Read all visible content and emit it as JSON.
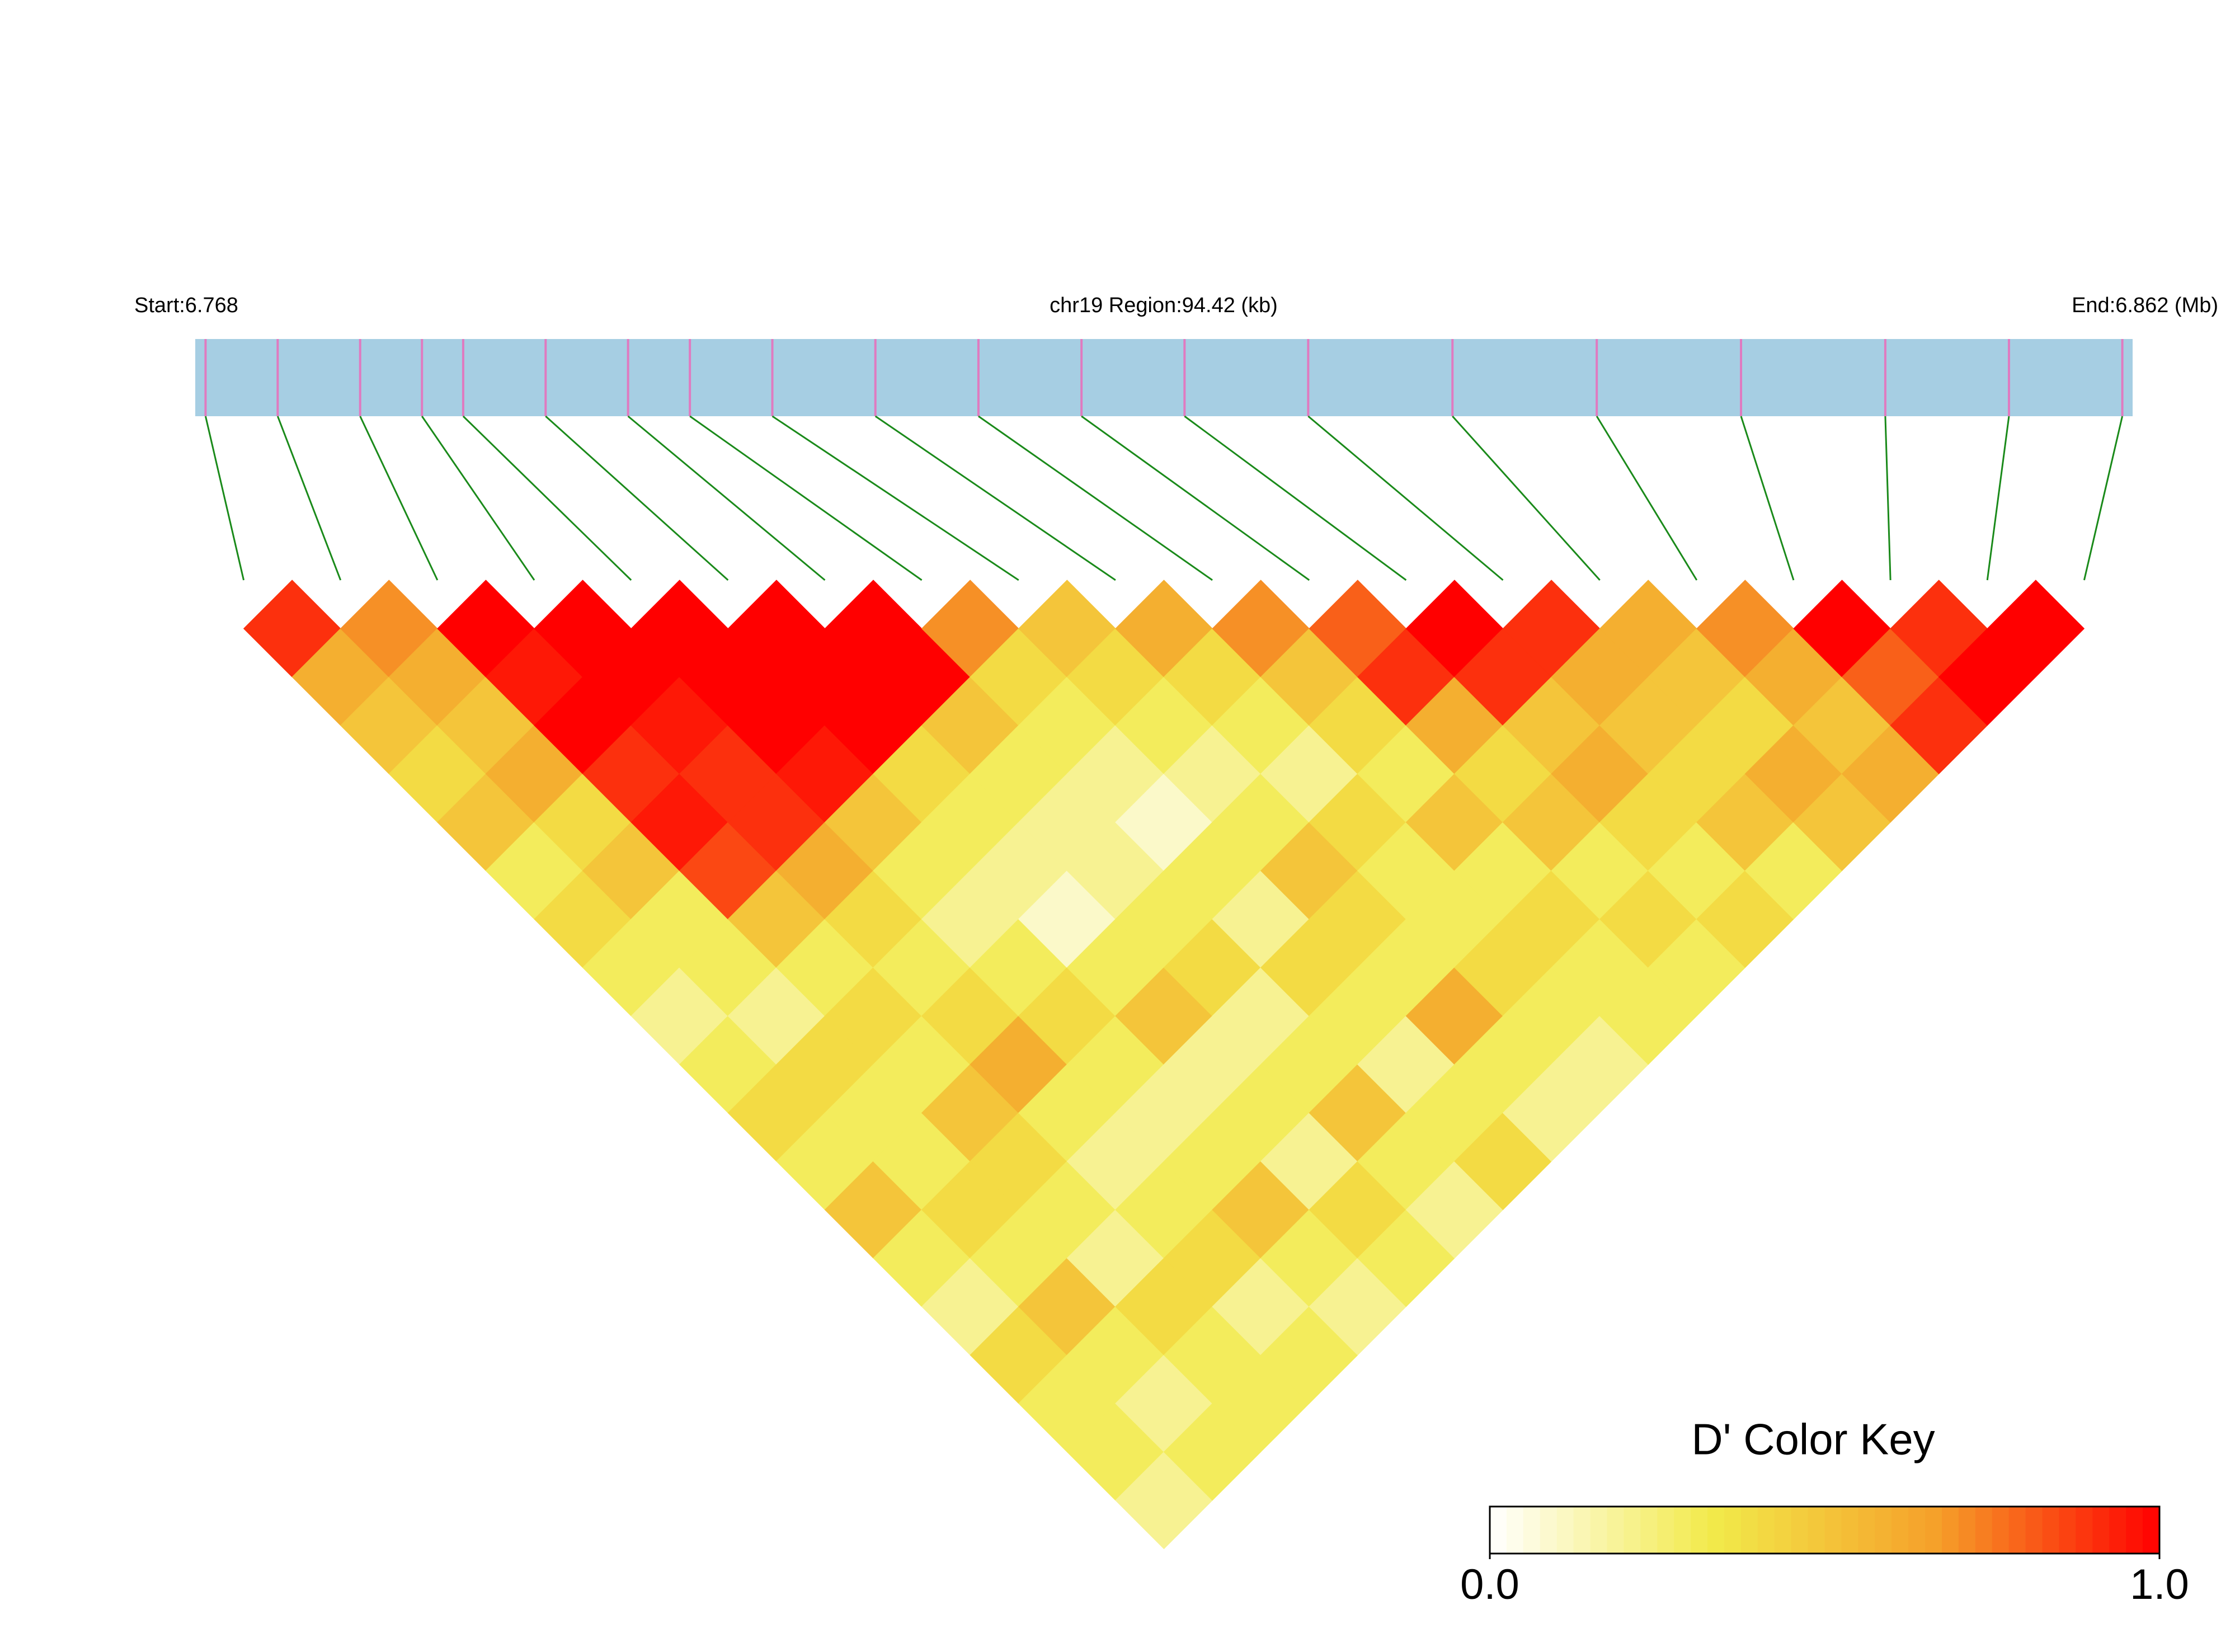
{
  "chart_data": {
    "type": "ld-heatmap",
    "start_label": "Start:6.768",
    "region_label": "chr19 Region:94.42 (kb)",
    "end_label": "End:6.862 (Mb)",
    "xlim": [
      6.768,
      6.862
    ],
    "snp_positions": [
      6.7685,
      6.772,
      6.776,
      6.779,
      6.781,
      6.785,
      6.789,
      6.792,
      6.796,
      6.801,
      6.806,
      6.811,
      6.816,
      6.822,
      6.829,
      6.836,
      6.843,
      6.85,
      6.856,
      6.8615
    ],
    "ld_matrix": [
      [
        0.9,
        0.6,
        0.5,
        0.4,
        0.5,
        0.3,
        0.4,
        0.3,
        0.2,
        0.3,
        0.4,
        0.3,
        0.5,
        0.3,
        0.2,
        0.4,
        0.3,
        0.3,
        0.2
      ],
      [
        0.7,
        0.6,
        0.5,
        0.6,
        0.4,
        0.5,
        0.3,
        0.3,
        0.2,
        0.4,
        0.3,
        0.3,
        0.4,
        0.3,
        0.5,
        0.3,
        0.2,
        0.3
      ],
      [
        1,
        0.95,
        1,
        0.9,
        0.95,
        0.85,
        0.5,
        0.3,
        0.4,
        0.3,
        0.5,
        0.4,
        0.3,
        0.2,
        0.4,
        0.3,
        0.3
      ],
      [
        1,
        1,
        0.95,
        0.9,
        0.9,
        0.6,
        0.4,
        0.3,
        0.4,
        0.6,
        0.3,
        0.2,
        0.3,
        0.4,
        0.2,
        0.3
      ],
      [
        1,
        1,
        1,
        0.95,
        0.5,
        0.3,
        0.2,
        0.3,
        0.4,
        0.3,
        0.2,
        0.3,
        0.5,
        0.3,
        0.2
      ],
      [
        1,
        1,
        1,
        0.4,
        0.3,
        0.2,
        0.1,
        0.3,
        0.5,
        0.2,
        0.3,
        0.2,
        0.4,
        0.3
      ],
      [
        1,
        1,
        0.5,
        0.3,
        0.2,
        0.2,
        0.3,
        0.4,
        0.2,
        0.3,
        0.5,
        0.3,
        0.2
      ],
      [
        0.7,
        0.4,
        0.3,
        0.2,
        0.1,
        0.3,
        0.2,
        0.4,
        0.3,
        0.2,
        0.3,
        0.4
      ],
      [
        0.5,
        0.4,
        0.3,
        0.2,
        0.3,
        0.5,
        0.4,
        0.3,
        0.6,
        0.3,
        0.2
      ],
      [
        0.6,
        0.4,
        0.3,
        0.2,
        0.4,
        0.3,
        0.3,
        0.4,
        0.3,
        0.2
      ],
      [
        0.7,
        0.5,
        0.4,
        0.3,
        0.5,
        0.3,
        0.4,
        0.3,
        0.3
      ],
      [
        0.8,
        0.9,
        0.6,
        0.4,
        0.5,
        0.3,
        0.4,
        0.3
      ],
      [
        1,
        0.9,
        0.5,
        0.6,
        0.4,
        0.3,
        0.4
      ],
      [
        0.9,
        0.6,
        0.5,
        0.4,
        0.5,
        0.3
      ],
      [
        0.6,
        0.5,
        0.4,
        0.6,
        0.5
      ],
      [
        0.7,
        0.6,
        0.5,
        0.6
      ],
      [
        1,
        0.8,
        0.9
      ],
      [
        0.9,
        1
      ],
      [
        1
      ]
    ],
    "color_key_title": "D' Color Key",
    "color_key_lim": [
      0,
      1
    ],
    "color_key_ticks": [
      {
        "value": 0,
        "label": "0.0"
      },
      {
        "value": 1,
        "label": "1.0"
      }
    ],
    "color_stops": [
      "#ffffff",
      "#f2ea4a",
      "#f5a02a",
      "#ff0000"
    ],
    "bar_color": "#a6cee3",
    "snp_line_color": "#e07ac0",
    "link_color": "#1a8a1a"
  }
}
